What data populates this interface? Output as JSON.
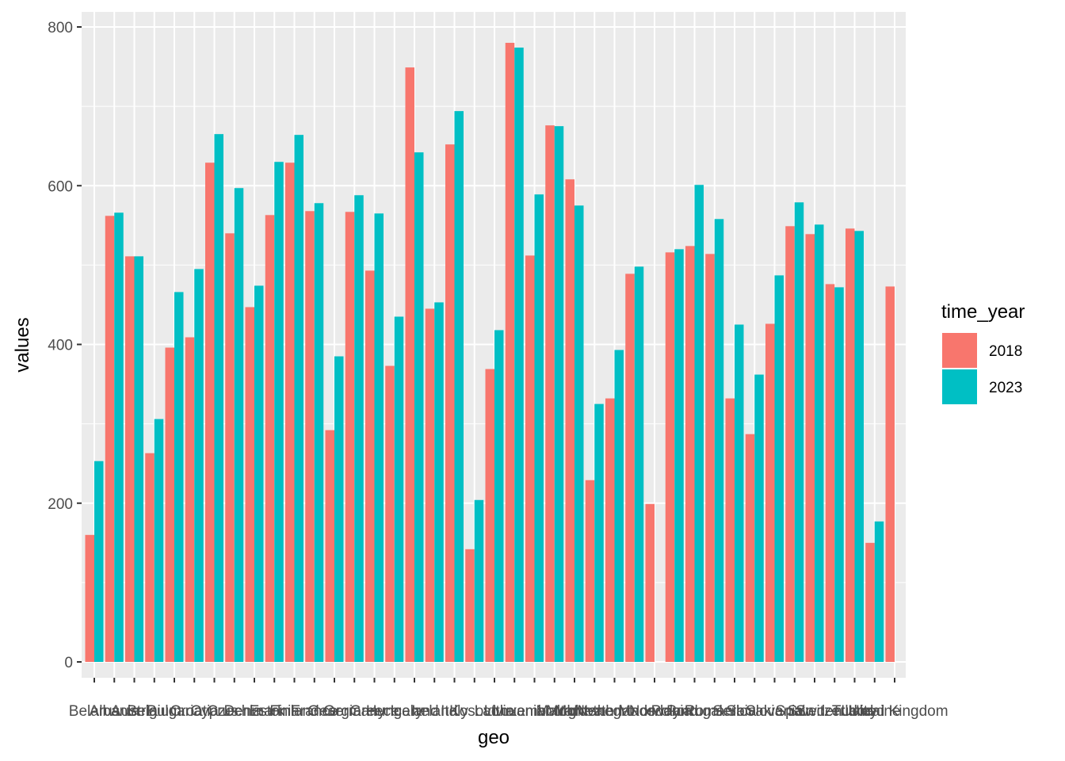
{
  "chart_data": {
    "type": "bar",
    "xlabel": "geo",
    "ylabel": "values",
    "ylim": [
      0,
      800
    ],
    "yticks": [
      0,
      200,
      400,
      600,
      800
    ],
    "grid": true,
    "legend_position": "right",
    "legend_title": "time_year",
    "categories": [
      "Belarus",
      "Albania",
      "Austria",
      "Belgium",
      "Bulgaria",
      "Croatia",
      "Cyprus",
      "Czechia",
      "Denmark",
      "Estonia",
      "Finland",
      "France",
      "Georgia",
      "Germany",
      "Greece",
      "Hungary",
      "Iceland",
      "Ireland",
      "Italy",
      "Kosovo",
      "Latvia",
      "Lithuania",
      "Luxembourg",
      "Malta",
      "Moldova",
      "Montenegro",
      "Netherlands",
      "North Macedonia",
      "Norway",
      "Poland",
      "Portugal",
      "Romania",
      "Serbia",
      "Slovakia",
      "Slovenia",
      "Spain",
      "Sweden",
      "Switzerland",
      "Turkey",
      "Ukraine",
      "United Kingdom"
    ],
    "series": [
      {
        "name": "2018",
        "color": "#F8766D",
        "values": [
          160,
          562,
          511,
          263,
          396,
          409,
          629,
          540,
          447,
          563,
          629,
          568,
          292,
          567,
          493,
          373,
          749,
          445,
          652,
          142,
          369,
          780,
          512,
          676,
          608,
          229,
          332,
          489,
          199,
          516,
          524,
          514,
          332,
          287,
          426,
          549,
          539,
          476,
          546,
          150,
          473
        ]
      },
      {
        "name": "2023",
        "color": "#00BFC4",
        "values": [
          253,
          566,
          511,
          306,
          466,
          495,
          665,
          597,
          474,
          630,
          664,
          578,
          385,
          588,
          565,
          435,
          642,
          453,
          694,
          204,
          418,
          774,
          589,
          675,
          575,
          325,
          393,
          498,
          null,
          520,
          601,
          558,
          425,
          362,
          487,
          579,
          551,
          472,
          543,
          177,
          null
        ]
      }
    ]
  },
  "colors": {
    "panel": "#EBEBEB",
    "grid": "#FFFFFF",
    "tick": "#333333"
  }
}
